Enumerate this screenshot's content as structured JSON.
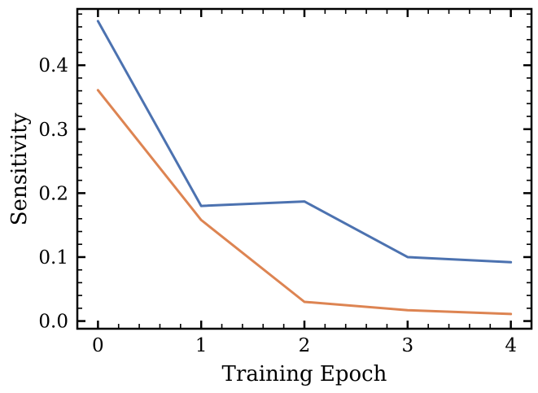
{
  "chart_data": {
    "type": "line",
    "title": "",
    "xlabel": "Training Epoch",
    "ylabel": "Sensitivity",
    "x": [
      0,
      1,
      2,
      3,
      4
    ],
    "xlim": [
      -0.2,
      4.2
    ],
    "ylim": [
      -0.012,
      0.488
    ],
    "x_ticks": [
      0,
      1,
      2,
      3,
      4
    ],
    "x_tick_labels": [
      "0",
      "1",
      "2",
      "3",
      "4"
    ],
    "y_ticks": [
      0.0,
      0.1,
      0.2,
      0.3,
      0.4
    ],
    "y_tick_labels": [
      "0.0",
      "0.1",
      "0.2",
      "0.3",
      "0.4"
    ],
    "grid": false,
    "legend": "none",
    "series": [
      {
        "color": "#4c72b0",
        "values": [
          0.469,
          0.18,
          0.187,
          0.1,
          0.092
        ]
      },
      {
        "color": "#dd8452",
        "values": [
          0.361,
          0.158,
          0.03,
          0.017,
          0.011
        ]
      }
    ]
  }
}
